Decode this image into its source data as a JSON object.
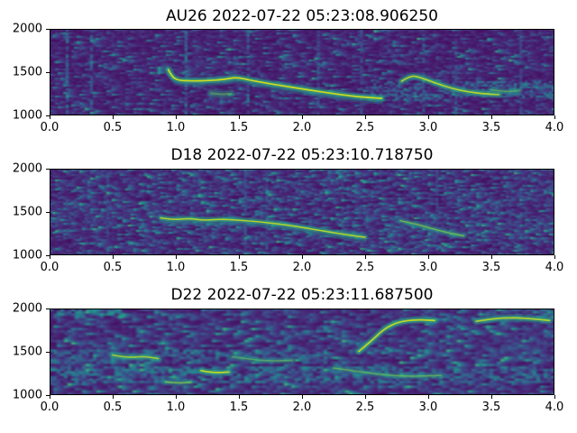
{
  "figure": {
    "background": "#ffffff",
    "colormap": "viridis"
  },
  "colors": {
    "spec_background": "#440154",
    "speckle_teal": "#2a788e",
    "trace_green": "#35b779",
    "trace_yellow": "#d8e219",
    "axis_text": "#000000"
  },
  "chart_data": [
    {
      "type": "heatmap",
      "subtype": "spectrogram",
      "title": "AU26 2022-07-22 05:23:08.906250",
      "xlabel": "",
      "ylabel": "",
      "xlim": [
        0.0,
        4.0
      ],
      "ylim": [
        1000,
        2000
      ],
      "xticks": [
        "0.0",
        "0.5",
        "1.0",
        "1.5",
        "2.0",
        "2.5",
        "3.0",
        "3.5",
        "4.0"
      ],
      "yticks": [
        "1000",
        "1500",
        "2000"
      ],
      "grid": false,
      "noise": {
        "seed": 101,
        "density": 0.55,
        "grain": [
          187,
          48
        ]
      },
      "clicks": [
        {
          "t": 0.13,
          "s": 0.9
        },
        {
          "t": 0.33,
          "s": 0.7
        },
        {
          "t": 1.06,
          "s": 1.0
        },
        {
          "t": 1.57,
          "s": 1.0
        },
        {
          "t": 2.12,
          "s": 0.5
        },
        {
          "t": 2.46,
          "s": 0.45
        },
        {
          "t": 2.95,
          "s": 0.55
        },
        {
          "t": 3.2,
          "s": 0.5
        },
        {
          "t": 3.72,
          "s": 0.4
        }
      ],
      "bands": [
        {
          "t": [
            2.55,
            4.0
          ],
          "f": [
            1200,
            1400
          ],
          "strength": 0.42
        },
        {
          "t": [
            2.5,
            3.1
          ],
          "f": [
            1170,
            1245
          ],
          "strength": 0.4
        },
        {
          "t": [
            0.8,
            1.7
          ],
          "f": [
            1450,
            1650
          ],
          "strength": 0.18
        }
      ],
      "contours": [
        {
          "points": [
            [
              0.94,
              1530
            ],
            [
              0.97,
              1445
            ],
            [
              1.02,
              1405
            ],
            [
              1.12,
              1398
            ],
            [
              1.25,
              1402
            ],
            [
              1.38,
              1415
            ],
            [
              1.48,
              1442
            ],
            [
              1.58,
              1410
            ],
            [
              1.72,
              1372
            ],
            [
              1.88,
              1335
            ],
            [
              2.05,
              1295
            ],
            [
              2.22,
              1258
            ],
            [
              2.4,
              1222
            ],
            [
              2.55,
              1205
            ],
            [
              2.63,
              1198
            ]
          ],
          "intensity": 1.0,
          "width": 4,
          "echo": true
        },
        {
          "points": [
            [
              2.79,
              1395
            ],
            [
              2.86,
              1465
            ],
            [
              2.94,
              1438
            ],
            [
              3.05,
              1378
            ],
            [
              3.18,
              1315
            ],
            [
              3.32,
              1270
            ],
            [
              3.46,
              1248
            ],
            [
              3.56,
              1242
            ]
          ],
          "intensity": 0.9,
          "width": 4,
          "echo": false
        },
        {
          "points": [
            [
              1.28,
              1258
            ],
            [
              1.36,
              1240
            ],
            [
              1.44,
              1252
            ]
          ],
          "intensity": 0.45,
          "width": 5,
          "echo": false
        },
        {
          "points": [
            [
              3.5,
              1295
            ],
            [
              3.62,
              1272
            ],
            [
              3.72,
              1288
            ]
          ],
          "intensity": 0.5,
          "width": 3,
          "echo": false
        }
      ]
    },
    {
      "type": "heatmap",
      "subtype": "spectrogram",
      "title": "D18 2022-07-22 05:23:10.718750",
      "xlabel": "",
      "ylabel": "",
      "xlim": [
        0.0,
        4.0
      ],
      "ylim": [
        1000,
        2000
      ],
      "xticks": [
        "0.0",
        "0.5",
        "1.0",
        "1.5",
        "2.0",
        "2.5",
        "3.0",
        "3.5",
        "4.0"
      ],
      "yticks": [
        "1000",
        "1500",
        "2000"
      ],
      "grid": false,
      "noise": {
        "seed": 202,
        "density": 1.1,
        "grain": [
          187,
          48
        ]
      },
      "clicks": [
        {
          "t": 0.45,
          "s": 0.4
        },
        {
          "t": 1.55,
          "s": 0.5
        },
        {
          "t": 1.72,
          "s": 0.45
        },
        {
          "t": 2.3,
          "s": 0.35
        },
        {
          "t": 3.05,
          "s": 0.4
        }
      ],
      "bands": [
        {
          "t": [
            0,
            1.1
          ],
          "f": [
            1330,
            1580
          ],
          "strength": 0.2
        },
        {
          "t": [
            2.6,
            4.0
          ],
          "f": [
            1260,
            1460
          ],
          "strength": 0.22
        },
        {
          "t": [
            0,
            4.0
          ],
          "f": [
            1900,
            2000
          ],
          "strength": 0.15
        }
      ],
      "contours": [
        {
          "points": [
            [
              0.88,
              1432
            ],
            [
              0.98,
              1408
            ],
            [
              1.1,
              1428
            ],
            [
              1.22,
              1402
            ],
            [
              1.35,
              1418
            ],
            [
              1.5,
              1405
            ],
            [
              1.65,
              1388
            ],
            [
              1.82,
              1362
            ],
            [
              2.0,
              1322
            ],
            [
              2.18,
              1278
            ],
            [
              2.35,
              1238
            ],
            [
              2.5,
              1208
            ]
          ],
          "intensity": 0.9,
          "width": 3.5,
          "echo": true
        },
        {
          "points": [
            [
              2.78,
              1398
            ],
            [
              2.9,
              1362
            ],
            [
              3.02,
              1312
            ],
            [
              3.15,
              1262
            ],
            [
              3.28,
              1224
            ]
          ],
          "intensity": 0.62,
          "width": 3,
          "echo": false
        }
      ]
    },
    {
      "type": "heatmap",
      "subtype": "spectrogram",
      "title": "D22 2022-07-22 05:23:11.687500",
      "xlabel": "",
      "ylabel": "",
      "xlim": [
        0.0,
        4.0
      ],
      "ylim": [
        1000,
        2000
      ],
      "xticks": [
        "0.0",
        "0.5",
        "1.0",
        "1.5",
        "2.0",
        "2.5",
        "3.0",
        "3.5",
        "4.0"
      ],
      "yticks": [
        "1000",
        "1500",
        "2000"
      ],
      "grid": false,
      "noise": {
        "seed": 303,
        "density": 1.15,
        "grain": [
          140,
          36
        ]
      },
      "clicks": [],
      "bands": [
        {
          "t": [
            0,
            2.2
          ],
          "f": [
            1350,
            1530
          ],
          "strength": 0.4
        },
        {
          "t": [
            0,
            4.0
          ],
          "f": [
            1130,
            1330
          ],
          "strength": 0.45
        },
        {
          "t": [
            0,
            0.6
          ],
          "f": [
            1880,
            2000
          ],
          "strength": 0.5
        },
        {
          "t": [
            2.85,
            4.0
          ],
          "f": [
            1450,
            1800
          ],
          "strength": 0.22
        },
        {
          "t": [
            0.3,
            1.3
          ],
          "f": [
            1550,
            1760
          ],
          "strength": 0.16
        },
        {
          "t": [
            3.3,
            4.0
          ],
          "f": [
            1850,
            2000
          ],
          "strength": 0.3
        }
      ],
      "contours": [
        {
          "points": [
            [
              0.5,
              1462
            ],
            [
              0.62,
              1432
            ],
            [
              0.75,
              1448
            ],
            [
              0.86,
              1422
            ]
          ],
          "intensity": 0.8,
          "width": 4,
          "echo": false
        },
        {
          "points": [
            [
              1.2,
              1282
            ],
            [
              1.3,
              1256
            ],
            [
              1.42,
              1266
            ]
          ],
          "intensity": 0.95,
          "width": 4,
          "echo": false
        },
        {
          "points": [
            [
              0.92,
              1152
            ],
            [
              1.02,
              1136
            ],
            [
              1.12,
              1150
            ]
          ],
          "intensity": 0.65,
          "width": 3,
          "echo": false
        },
        {
          "points": [
            [
              1.45,
              1442
            ],
            [
              1.6,
              1412
            ],
            [
              1.75,
              1392
            ],
            [
              1.92,
              1402
            ]
          ],
          "intensity": 0.5,
          "width": 3,
          "echo": false
        },
        {
          "points": [
            [
              2.45,
              1505
            ],
            [
              2.55,
              1625
            ],
            [
              2.65,
              1765
            ],
            [
              2.76,
              1845
            ],
            [
              2.9,
              1872
            ],
            [
              3.05,
              1862
            ]
          ],
          "intensity": 0.95,
          "width": 4,
          "echo": false
        },
        {
          "points": [
            [
              3.38,
              1852
            ],
            [
              3.52,
              1885
            ],
            [
              3.68,
              1895
            ],
            [
              3.82,
              1882
            ],
            [
              3.96,
              1862
            ]
          ],
          "intensity": 0.9,
          "width": 4,
          "echo": false
        },
        {
          "points": [
            [
              2.25,
              1312
            ],
            [
              2.45,
              1272
            ],
            [
              2.65,
              1232
            ],
            [
              2.85,
              1216
            ],
            [
              3.1,
              1226
            ]
          ],
          "intensity": 0.55,
          "width": 3,
          "echo": false
        }
      ]
    }
  ]
}
